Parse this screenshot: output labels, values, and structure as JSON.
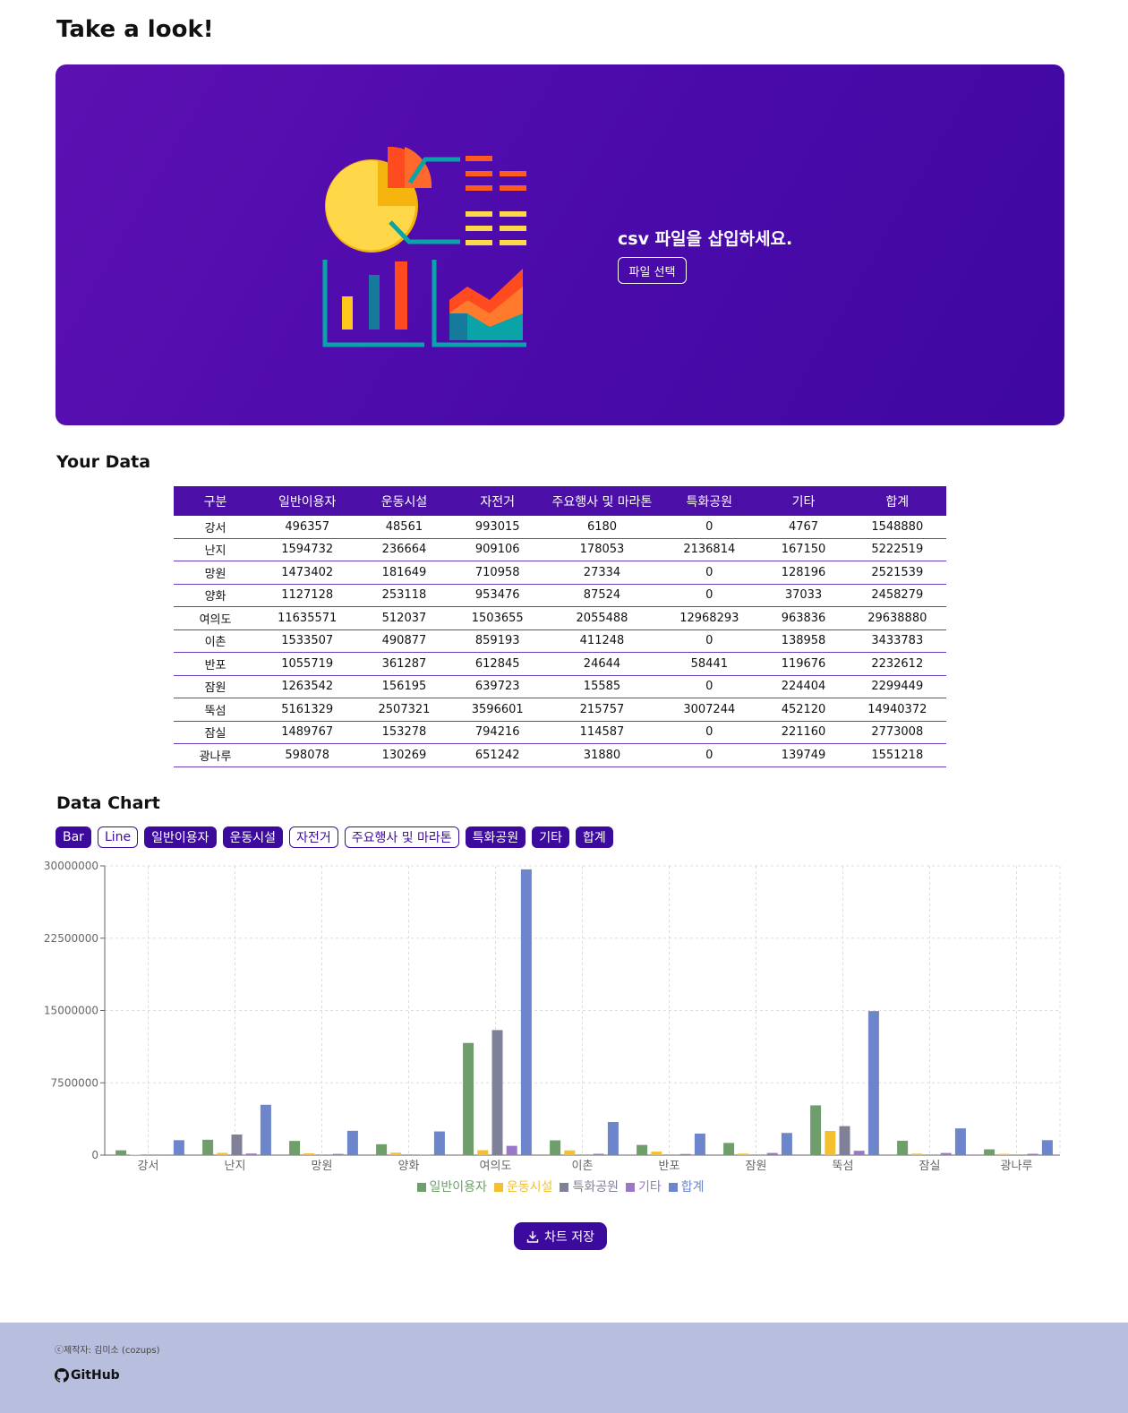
{
  "header": {
    "title": "Take a look!"
  },
  "upload": {
    "prompt": "csv 파일을 삽입하세요.",
    "button": "파일 선택"
  },
  "data_section": {
    "title": "Your Data"
  },
  "table": {
    "columns": [
      "구분",
      "일반이용자",
      "운동시설",
      "자전거",
      "주요행사 및 마라톤",
      "특화공원",
      "기타",
      "합계"
    ],
    "rows": [
      [
        "강서",
        "496357",
        "48561",
        "993015",
        "6180",
        "0",
        "4767",
        "1548880"
      ],
      [
        "난지",
        "1594732",
        "236664",
        "909106",
        "178053",
        "2136814",
        "167150",
        "5222519"
      ],
      [
        "망원",
        "1473402",
        "181649",
        "710958",
        "27334",
        "0",
        "128196",
        "2521539"
      ],
      [
        "양화",
        "1127128",
        "253118",
        "953476",
        "87524",
        "0",
        "37033",
        "2458279"
      ],
      [
        "여의도",
        "11635571",
        "512037",
        "1503655",
        "2055488",
        "12968293",
        "963836",
        "29638880"
      ],
      [
        "이촌",
        "1533507",
        "490877",
        "859193",
        "411248",
        "0",
        "138958",
        "3433783"
      ],
      [
        "반포",
        "1055719",
        "361287",
        "612845",
        "24644",
        "58441",
        "119676",
        "2232612"
      ],
      [
        "잠원",
        "1263542",
        "156195",
        "639723",
        "15585",
        "0",
        "224404",
        "2299449"
      ],
      [
        "뚝섬",
        "5161329",
        "2507321",
        "3596601",
        "215757",
        "3007244",
        "452120",
        "14940372"
      ],
      [
        "잠실",
        "1489767",
        "153278",
        "794216",
        "114587",
        "0",
        "221160",
        "2773008"
      ],
      [
        "광나루",
        "598078",
        "130269",
        "651242",
        "31880",
        "0",
        "139749",
        "1551218"
      ]
    ]
  },
  "chart_section": {
    "title": "Data Chart",
    "buttons": [
      {
        "label": "Bar",
        "active": true
      },
      {
        "label": "Line",
        "active": false
      },
      {
        "label": "일반이용자",
        "active": true
      },
      {
        "label": "운동시설",
        "active": true
      },
      {
        "label": "자전거",
        "active": false
      },
      {
        "label": "주요행사 및 마라톤",
        "active": false
      },
      {
        "label": "특화공원",
        "active": true
      },
      {
        "label": "기타",
        "active": true
      },
      {
        "label": "합계",
        "active": true
      }
    ],
    "save_button": "차트 저장"
  },
  "chart_data": {
    "type": "bar",
    "categories": [
      "강서",
      "난지",
      "망원",
      "양화",
      "여의도",
      "이촌",
      "반포",
      "잠원",
      "뚝섬",
      "잠실",
      "광나루"
    ],
    "series": [
      {
        "name": "일반이용자",
        "color": "#6f9e6a",
        "values": [
          496357,
          1594732,
          1473402,
          1127128,
          11635571,
          1533507,
          1055719,
          1263542,
          5161329,
          1489767,
          598078
        ]
      },
      {
        "name": "운동시설",
        "color": "#f4c02e",
        "values": [
          48561,
          236664,
          181649,
          253118,
          512037,
          490877,
          361287,
          156195,
          2507321,
          153278,
          130269
        ]
      },
      {
        "name": "특화공원",
        "color": "#7f8198",
        "values": [
          0,
          2136814,
          0,
          0,
          12968293,
          0,
          58441,
          0,
          3007244,
          0,
          0
        ]
      },
      {
        "name": "기타",
        "color": "#9a78c8",
        "values": [
          4767,
          167150,
          128196,
          37033,
          963836,
          138958,
          119676,
          224404,
          452120,
          221160,
          139749
        ]
      },
      {
        "name": "합계",
        "color": "#6d85cb",
        "values": [
          1548880,
          5222519,
          2521539,
          2458279,
          29638880,
          3433783,
          2232612,
          2299449,
          14940372,
          2773008,
          1551218
        ]
      }
    ],
    "ylim": [
      0,
      30000000
    ],
    "yticks": [
      0,
      7500000,
      15000000,
      22500000,
      30000000
    ],
    "grid": true,
    "legend": "bottom"
  },
  "footer": {
    "credit": "ⓒ제작자: 김미소 (cozups)",
    "link": "GitHub"
  }
}
